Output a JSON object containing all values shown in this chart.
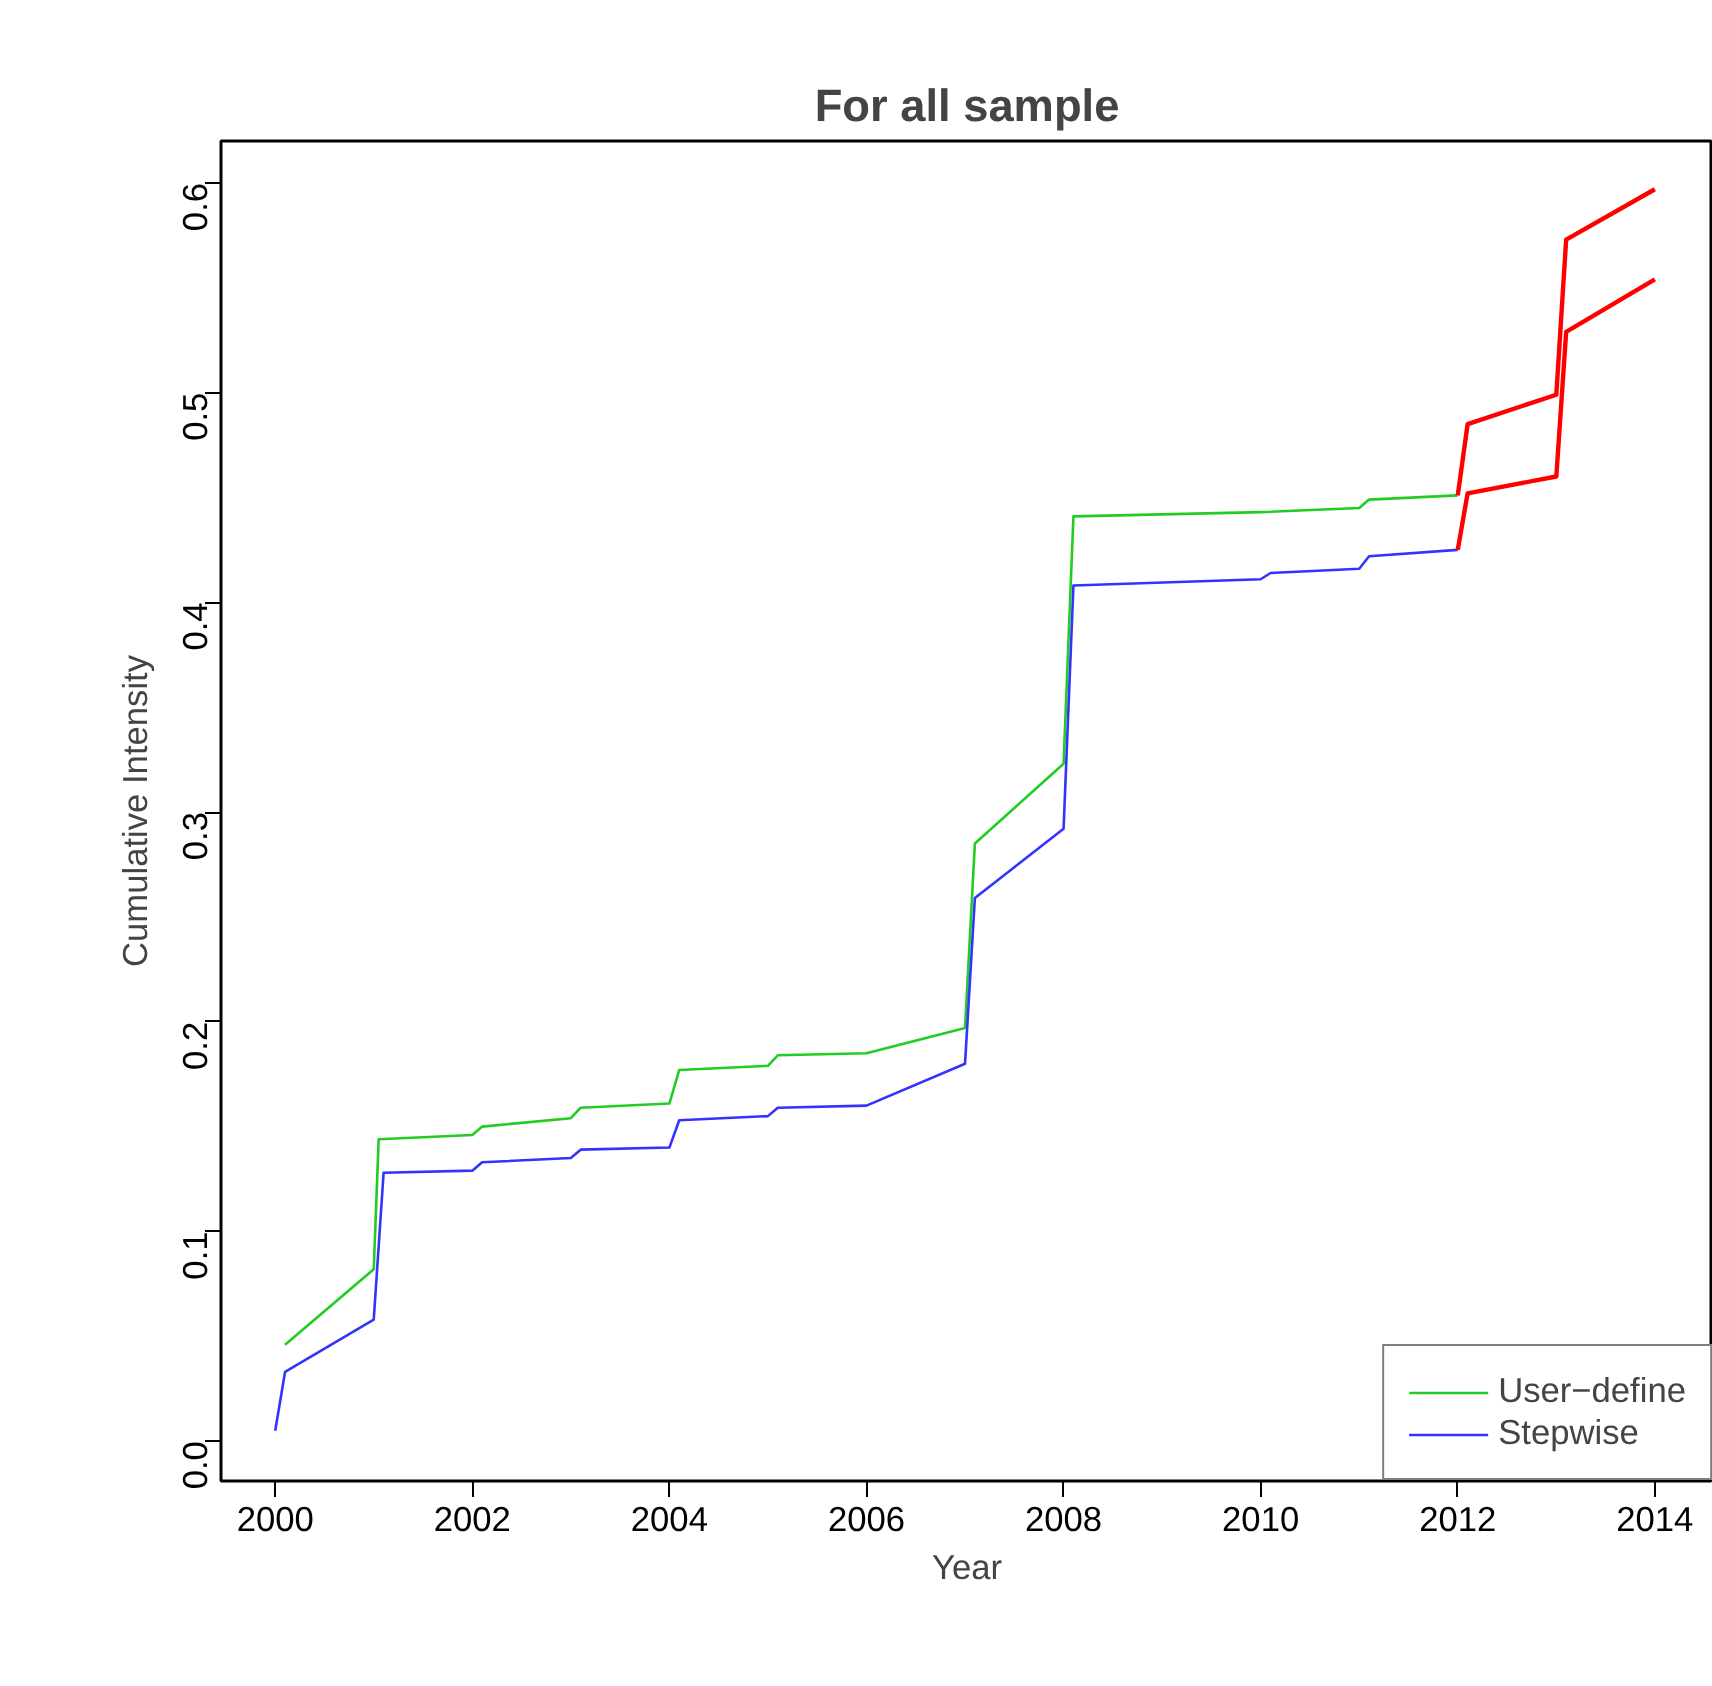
{
  "chart_data": {
    "type": "line",
    "title": "For all sample",
    "xlabel": "Year",
    "ylabel": "Cumulative Intensity",
    "xlim": [
      1999.45,
      2014.59
    ],
    "ylim": [
      -0.019,
      0.62
    ],
    "xticks": [
      2000,
      2002,
      2004,
      2006,
      2008,
      2010,
      2012,
      2014
    ],
    "yticks": [
      {
        "value": 0,
        "label": "0.0"
      },
      {
        "value": 0.1,
        "label": "0.1"
      },
      {
        "value": 0.2,
        "label": "0.2"
      },
      {
        "value": 0.3,
        "label": "0.3"
      },
      {
        "value": 0.4,
        "label": "0.4"
      },
      {
        "value": 0.5,
        "label": "0.5"
      },
      {
        "value": 0.6,
        "label": "0.6"
      }
    ],
    "grid": false,
    "legend": "bottom right",
    "marker": "none",
    "line_style": "solid",
    "series": [
      {
        "name": "User−define",
        "color": "#22cc22",
        "x": [
          2000.1,
          2001.0,
          2001.05,
          2002.0,
          2002.1,
          2003.0,
          2003.1,
          2004.0,
          2004.1,
          2005.0,
          2005.1,
          2006.0,
          2007.0,
          2007.1,
          2008.0,
          2008.1,
          2010.0,
          2011.0,
          2011.1,
          2012.0
        ],
        "values": [
          0.046,
          0.082,
          0.144,
          0.146,
          0.15,
          0.154,
          0.159,
          0.161,
          0.177,
          0.179,
          0.184,
          0.185,
          0.197,
          0.285,
          0.323,
          0.441,
          0.443,
          0.445,
          0.449,
          0.451
        ]
      },
      {
        "name": "Stepwise",
        "color": "#3333ff",
        "x": [
          2000.0,
          2000.1,
          2001.0,
          2001.1,
          2002.0,
          2002.1,
          2003.0,
          2003.1,
          2004.0,
          2004.1,
          2005.0,
          2005.1,
          2006.0,
          2007.0,
          2007.1,
          2008.0,
          2008.1,
          2010.0,
          2010.1,
          2011.0,
          2011.1,
          2012.0
        ],
        "values": [
          0.005,
          0.033,
          0.058,
          0.128,
          0.129,
          0.133,
          0.135,
          0.139,
          0.14,
          0.153,
          0.155,
          0.159,
          0.16,
          0.18,
          0.259,
          0.292,
          0.408,
          0.411,
          0.414,
          0.416,
          0.422,
          0.425
        ]
      },
      {
        "color": "#ff0000",
        "x": [
          2012.0,
          2012.1,
          2013.0,
          2013.1,
          2014.0
        ],
        "values": [
          0.451,
          0.485,
          0.499,
          0.573,
          0.597
        ]
      },
      {
        "color": "#ff0000",
        "x": [
          2012.0,
          2012.1,
          2013.0,
          2013.1,
          2014.0
        ],
        "values": [
          0.425,
          0.452,
          0.46,
          0.529,
          0.554
        ]
      }
    ]
  }
}
